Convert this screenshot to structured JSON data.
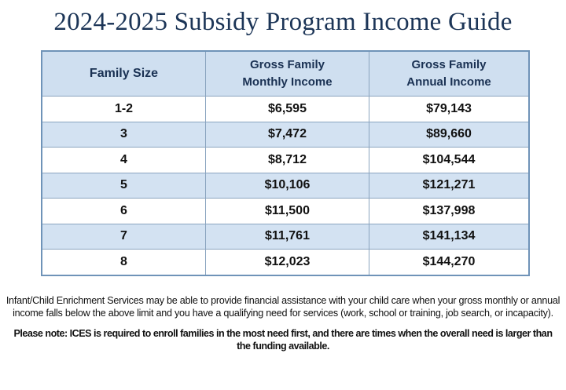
{
  "document": {
    "title": "2024-2025 Subsidy Program Income Guide",
    "table": {
      "headers": [
        "Family Size",
        "Gross Family\nMonthly Income",
        "Gross Family\nAnnual Income"
      ],
      "header_lines": [
        [
          "Family Size"
        ],
        [
          "Gross Family",
          "Monthly Income"
        ],
        [
          "Gross Family",
          "Annual Income"
        ]
      ],
      "rows": [
        [
          "1-2",
          "$6,595",
          "$79,143"
        ],
        [
          "3",
          "$7,472",
          "$89,660"
        ],
        [
          "4",
          "$8,712",
          "$104,544"
        ],
        [
          "5",
          "$10,106",
          "$121,271"
        ],
        [
          "6",
          "$11,500",
          "$137,998"
        ],
        [
          "7",
          "$11,761",
          "$141,134"
        ],
        [
          "8",
          "$12,023",
          "$144,270"
        ]
      ]
    },
    "paragraph_1": "Infant/Child Enrichment Services may be able to provide financial assistance with your child care when your gross monthly or annual income falls below the above limit and you have a qualifying need for services (work, school or training, job search, or incapacity).",
    "paragraph_2": "Please note: ICES is required to enroll families in the most need first, and there are times when the overall need is larger than the funding available."
  },
  "colors": {
    "title": "#1c3557",
    "header_bg": "#cfdff0",
    "header_text": "#1a3153",
    "alt_row_bg": "#d3e2f2",
    "border": "#6f93b8"
  }
}
